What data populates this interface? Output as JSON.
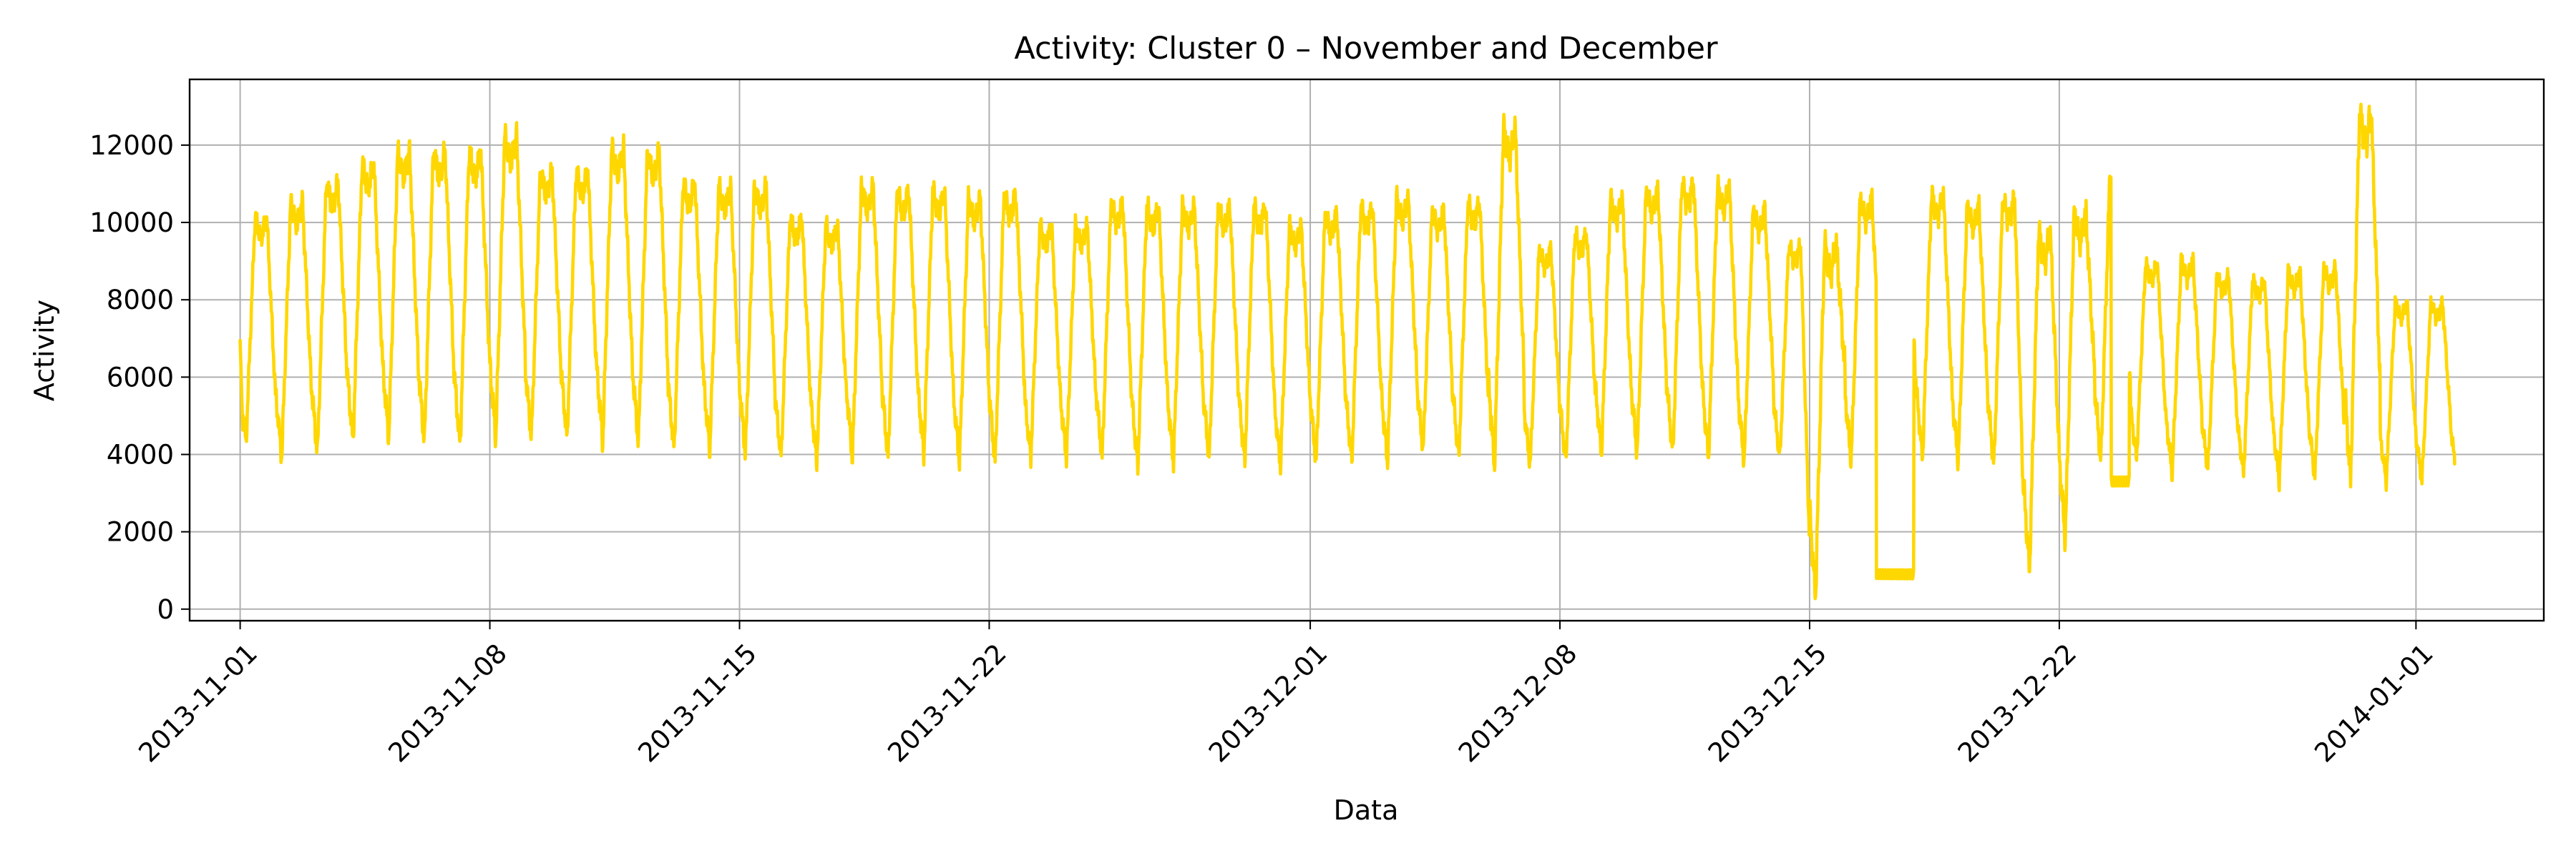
{
  "chart_data": {
    "type": "line",
    "title": "Activity: Cluster 0 – November and December",
    "xlabel": "Data",
    "ylabel": "Activity",
    "ylim": [
      -300,
      13700
    ],
    "xlim": [
      "2013-10-30T14:00",
      "2014-01-04T14:00"
    ],
    "grid": true,
    "line_color": "#FFD700",
    "yticks": [
      0,
      2000,
      4000,
      6000,
      8000,
      10000,
      12000
    ],
    "xticks": [
      "2013-11-01",
      "2013-11-08",
      "2013-11-15",
      "2013-11-22",
      "2013-12-01",
      "2013-12-08",
      "2013-12-15",
      "2013-12-22",
      "2014-01-01"
    ],
    "x_start": "2013-11-01",
    "x_end": "2014-01-02T02:00",
    "daily_max": [
      10100,
      10500,
      11000,
      11500,
      11800,
      11800,
      11800,
      12200,
      11300,
      11300,
      11900,
      11800,
      11000,
      10900,
      10900,
      10100,
      9900,
      10900,
      10800,
      10800,
      10600,
      10700,
      9900,
      9900,
      10500,
      10400,
      10400,
      10400,
      10400,
      9900,
      10200,
      10400,
      10600,
      10300,
      10500,
      12400,
      9300,
      9700,
      10600,
      10800,
      11000,
      10900,
      10300,
      9400,
      9400,
      10600,
      10400,
      10700,
      10400,
      10600,
      9700,
      10200,
      11200,
      8900,
      9000,
      8600,
      8500,
      8700,
      8800,
      12800,
      7900
    ],
    "daily_min": [
      4300,
      3900,
      4000,
      4300,
      4400,
      4300,
      4200,
      4400,
      4400,
      4400,
      4300,
      4300,
      4100,
      4100,
      4000,
      3900,
      3800,
      3900,
      3900,
      4000,
      3800,
      3800,
      3900,
      3900,
      3900,
      3700,
      3800,
      3900,
      3800,
      3700,
      3800,
      3800,
      3800,
      4100,
      3900,
      3700,
      3700,
      3800,
      4000,
      4000,
      4000,
      3900,
      3800,
      3900,
      300,
      3800,
      3900,
      3900,
      3800,
      3700,
      1000,
      1800,
      3800,
      3900,
      3500,
      3600,
      3500,
      3300,
      3400,
      3300,
      3300
    ],
    "anomalies": [
      {
        "start": "2013-12-16T21:00",
        "end": "2013-12-17T22:00",
        "level": 900
      },
      {
        "start": "2013-12-23T11:00",
        "end": "2013-12-23T23:00",
        "level": 3300
      }
    ]
  }
}
